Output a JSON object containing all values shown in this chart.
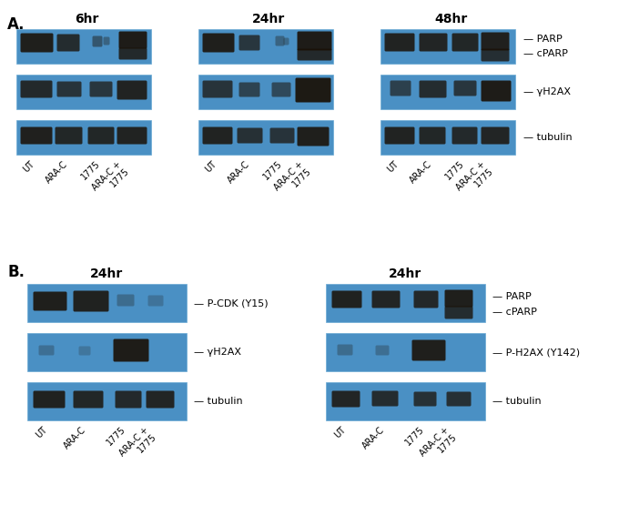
{
  "blot_bg": "#4a90c4",
  "blot_bg_dark": "#3878aa",
  "band_color": "#1a1005",
  "fig_bg": "#ffffff",
  "font_size_title": 10,
  "font_size_label": 8,
  "font_size_tick": 7,
  "font_size_panel": 12,
  "x_labels": [
    "UT",
    "ARA-C",
    "1775",
    "ARA-C +\n1775"
  ]
}
